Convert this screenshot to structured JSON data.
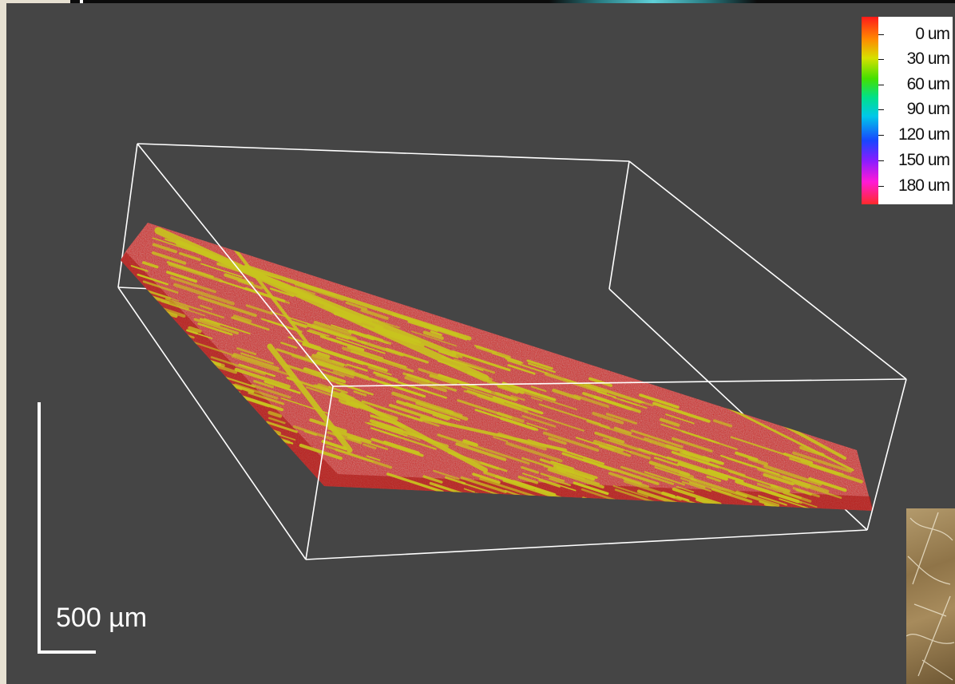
{
  "scale_bar": {
    "label": "500 µm"
  },
  "color_scale": {
    "labels": [
      "0 um",
      "30 um",
      "60 um",
      "90 um",
      "120 um",
      "150 um",
      "180 um"
    ],
    "colors": [
      "#ff1a1a",
      "#ff8a00",
      "#d6e000",
      "#44e000",
      "#00e08a",
      "#00c8e8",
      "#1846ff",
      "#8b1cff",
      "#ff1ad6",
      "#ff2a2a"
    ]
  },
  "scene": {
    "background": "#454545",
    "surface_color": "#d21a14",
    "feature_color": "#c8c41e",
    "box_color": "#ffffff"
  }
}
